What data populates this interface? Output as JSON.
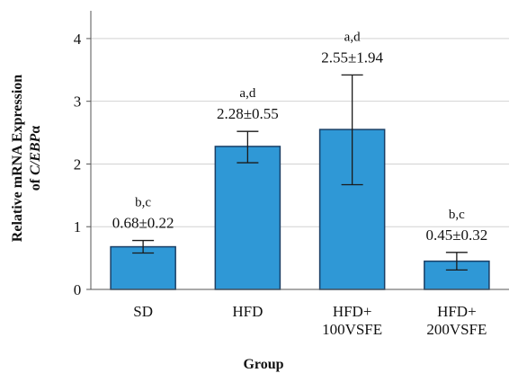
{
  "chart_data": {
    "type": "bar",
    "xlabel": "Group",
    "ylabel_line1": "Relative mRNA Expression",
    "ylabel_line2_prefix": "of ",
    "ylabel_line2_italic": "C/EBP",
    "ylabel_line2_suffix": "α",
    "categories": [
      [
        "SD"
      ],
      [
        "HFD"
      ],
      [
        "HFD+",
        "100VSFE"
      ],
      [
        "HFD+",
        "200VSFE"
      ]
    ],
    "values": [
      0.68,
      2.28,
      2.55,
      0.45
    ],
    "error_low": [
      0.58,
      2.02,
      1.67,
      0.31
    ],
    "error_high": [
      0.78,
      2.52,
      3.42,
      0.59
    ],
    "annotations_letters": [
      "b,c",
      "a,d",
      "a,d",
      "b,c"
    ],
    "annotations_values": [
      "0.68±0.22",
      "2.28±0.55",
      "2.55±1.94",
      "0.45±0.32"
    ],
    "yticks": [
      0,
      1,
      2,
      3,
      4
    ],
    "ylim": [
      0,
      4.4
    ],
    "grid": true,
    "bar_color": "#2f98d6",
    "bar_edge_color": "#1a3f66"
  }
}
